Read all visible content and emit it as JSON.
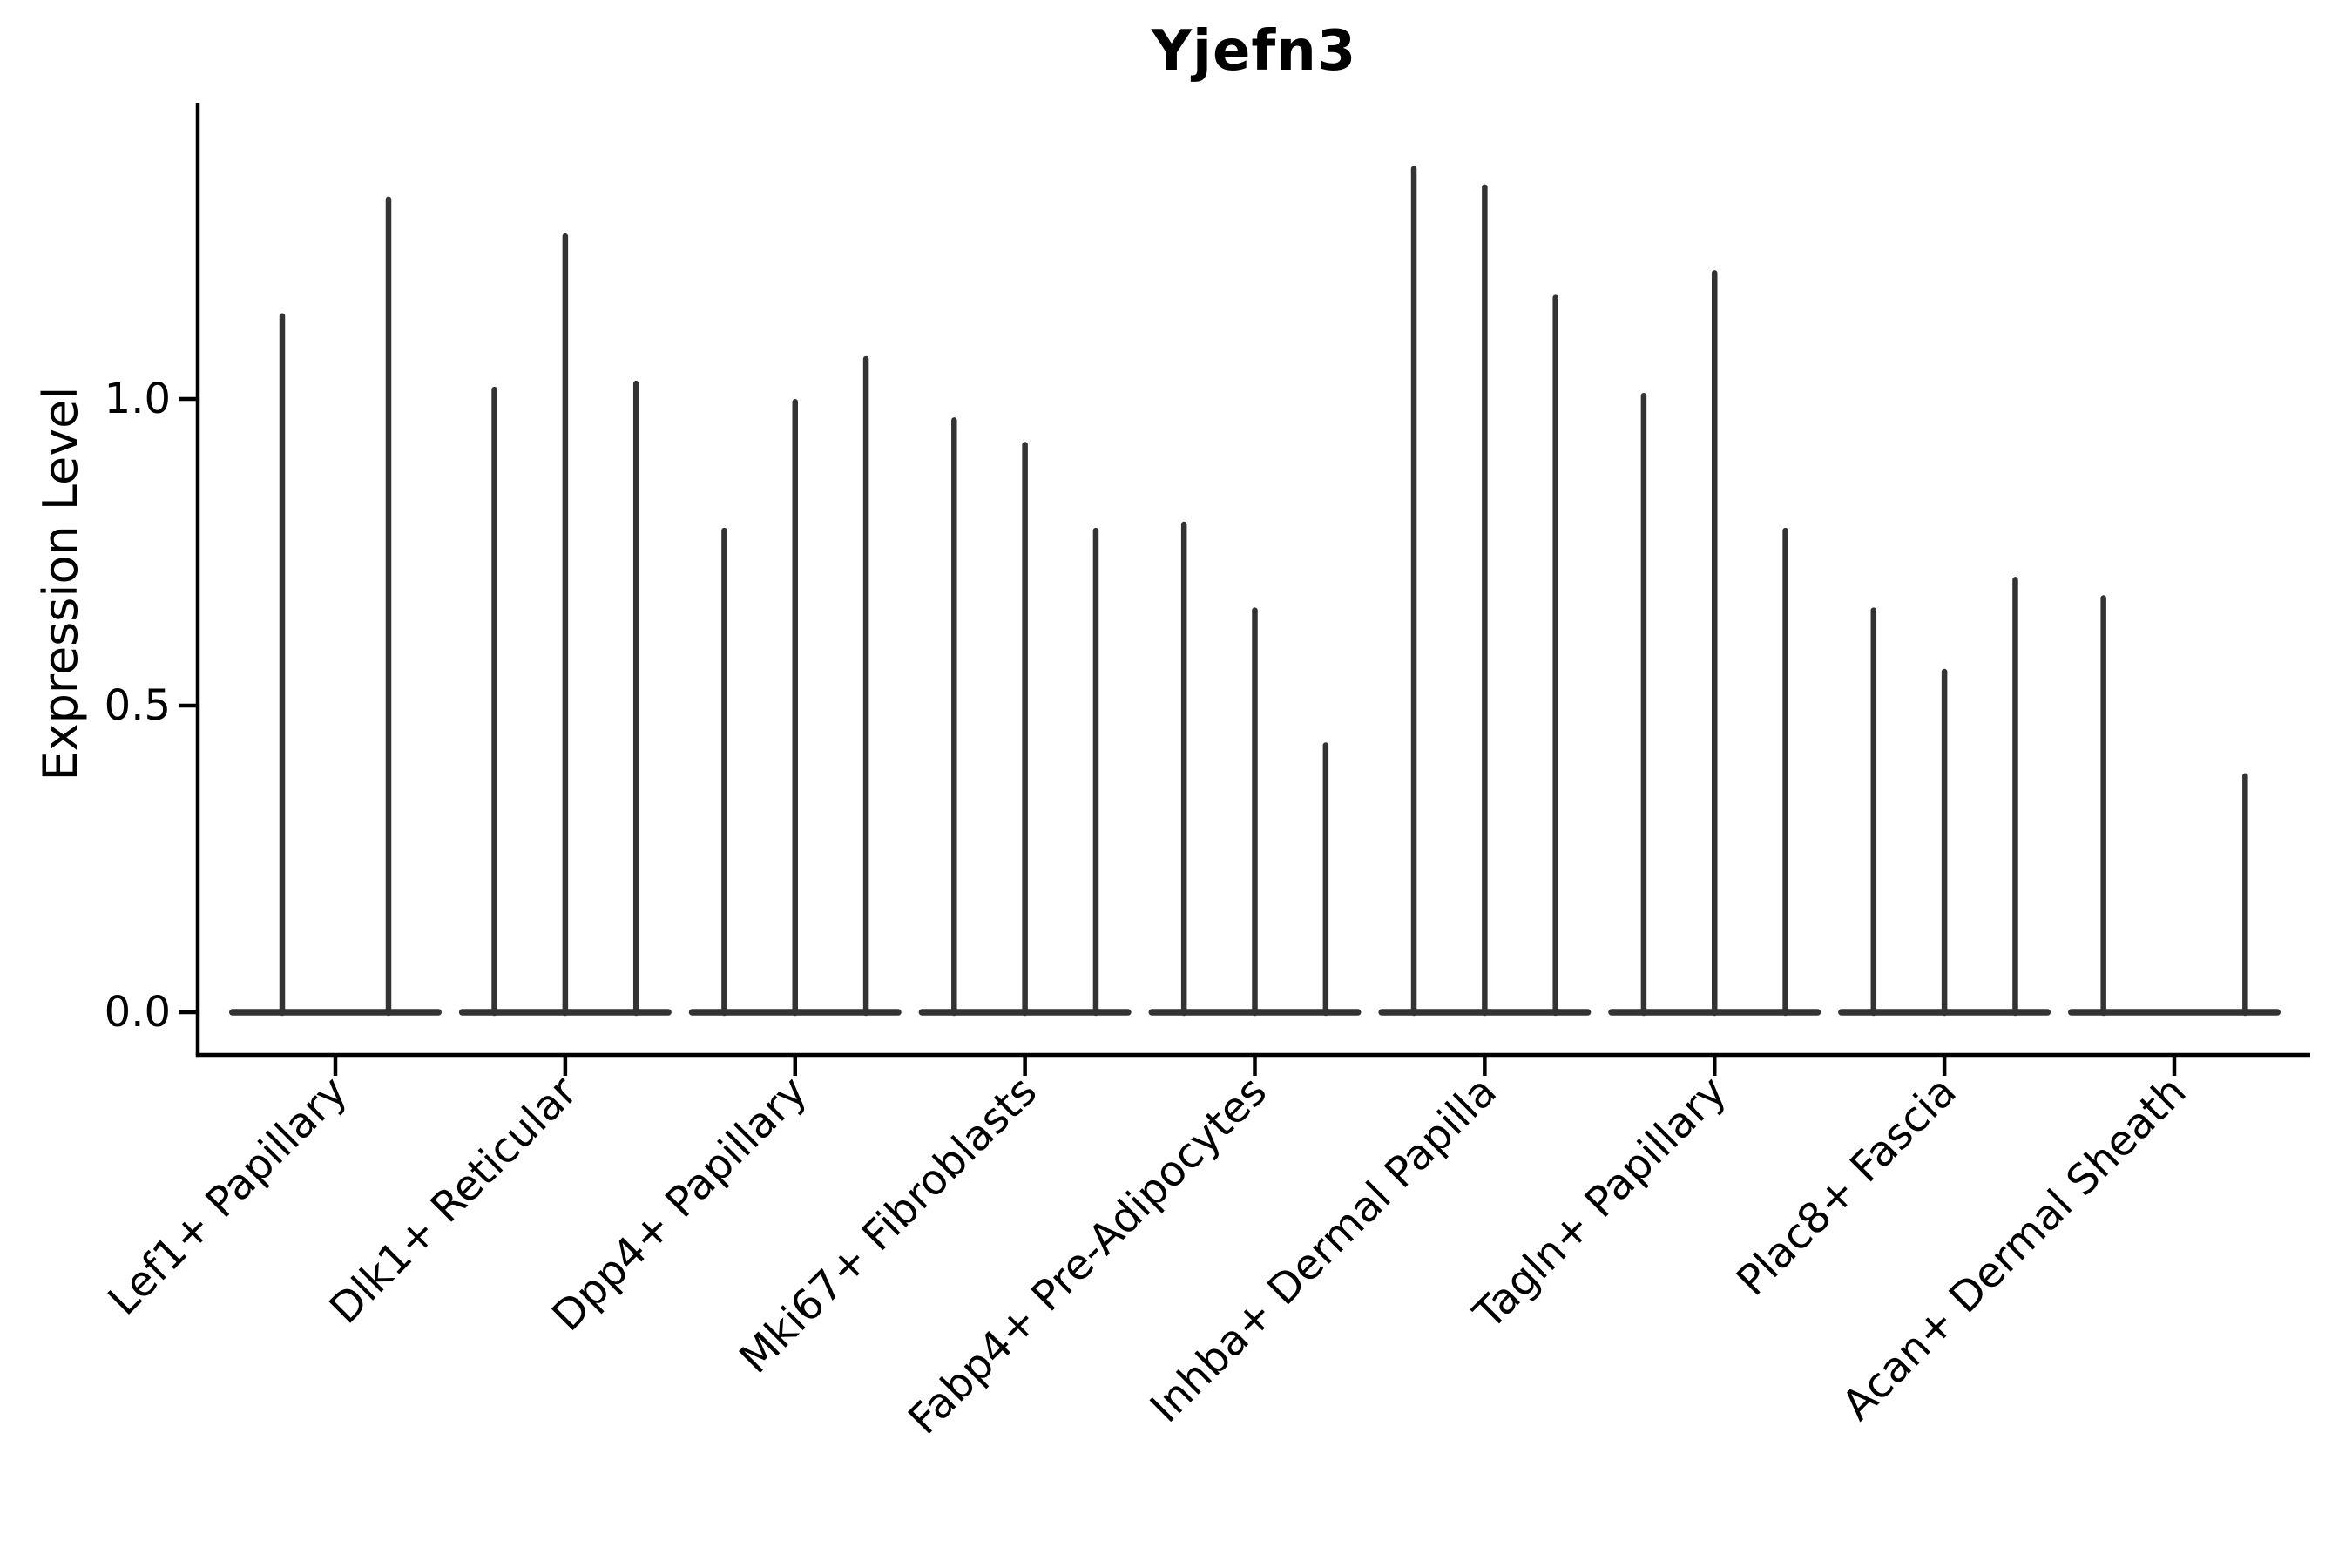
{
  "chart_data": {
    "type": "violin",
    "title": "Yjefn3",
    "ylabel": "Expression Level",
    "xlabel": "",
    "grid": false,
    "legend": null,
    "background": "#ffffff",
    "violin_color": "#333333",
    "axis_color": "#000000",
    "text_color": "#000000",
    "ylim": [
      -0.07,
      1.48
    ],
    "yticks": [
      {
        "value": 0.0,
        "label": "0.0"
      },
      {
        "value": 0.5,
        "label": "0.5"
      },
      {
        "value": 1.0,
        "label": "1.0"
      }
    ],
    "categories": [
      {
        "label": "Lef1+ Papillary",
        "violin_maxima": [
          1.14,
          1.33
        ]
      },
      {
        "label": "Dlk1+ Reticular",
        "violin_maxima": [
          1.02,
          1.27,
          1.03
        ]
      },
      {
        "label": "Dpp4+ Papillary",
        "violin_maxima": [
          0.79,
          1.0,
          1.07
        ]
      },
      {
        "label": "Mki67+ Fibroblasts",
        "violin_maxima": [
          0.97,
          0.93,
          0.79
        ]
      },
      {
        "label": "Fabp4+ Pre-Adipocytes",
        "violin_maxima": [
          0.8,
          0.66,
          0.44
        ]
      },
      {
        "label": "Inhba+ Dermal Papilla",
        "violin_maxima": [
          1.38,
          1.35,
          1.17
        ]
      },
      {
        "label": "Tagln+ Papillary",
        "violin_maxima": [
          1.01,
          1.21,
          0.79
        ]
      },
      {
        "label": "Plac8+ Fascia",
        "violin_maxima": [
          0.66,
          0.56,
          0.71
        ]
      },
      {
        "label": "Acan+ Dermal Sheath",
        "violin_maxima": [
          0.68,
          0.0,
          0.39
        ]
      }
    ]
  }
}
